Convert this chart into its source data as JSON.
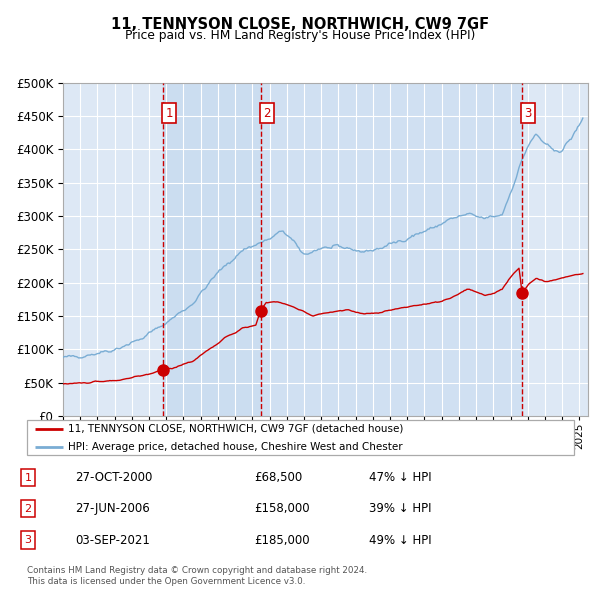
{
  "title_line1": "11, TENNYSON CLOSE, NORTHWICH, CW9 7GF",
  "title_line2": "Price paid vs. HM Land Registry's House Price Index (HPI)",
  "background_color": "#ffffff",
  "plot_bg_color": "#dde8f5",
  "hpi_color": "#7aadd4",
  "price_color": "#cc0000",
  "transactions": [
    {
      "label": 1,
      "date_num": 2000.83,
      "price": 68500,
      "text": "27-OCT-2000",
      "price_str": "£68,500",
      "pct": "47% ↓ HPI"
    },
    {
      "label": 2,
      "date_num": 2006.49,
      "price": 158000,
      "text": "27-JUN-2006",
      "price_str": "£158,000",
      "pct": "39% ↓ HPI"
    },
    {
      "label": 3,
      "date_num": 2021.67,
      "price": 185000,
      "text": "03-SEP-2021",
      "price_str": "£185,000",
      "pct": "49% ↓ HPI"
    }
  ],
  "ylim": [
    0,
    500000
  ],
  "yticks": [
    0,
    50000,
    100000,
    150000,
    200000,
    250000,
    300000,
    350000,
    400000,
    450000,
    500000
  ],
  "xlim_start": 1995.0,
  "xlim_end": 2025.5,
  "xticks": [
    1995,
    1996,
    1997,
    1998,
    1999,
    2000,
    2001,
    2002,
    2003,
    2004,
    2005,
    2006,
    2007,
    2008,
    2009,
    2010,
    2011,
    2012,
    2013,
    2014,
    2015,
    2016,
    2017,
    2018,
    2019,
    2020,
    2021,
    2022,
    2023,
    2024,
    2025
  ],
  "legend_label_price": "11, TENNYSON CLOSE, NORTHWICH, CW9 7GF (detached house)",
  "legend_label_hpi": "HPI: Average price, detached house, Cheshire West and Chester",
  "footer_line1": "Contains HM Land Registry data © Crown copyright and database right 2024.",
  "footer_line2": "This data is licensed under the Open Government Licence v3.0.",
  "hpi_anchors_t": [
    1995.0,
    1996.5,
    1998.0,
    1999.5,
    2001.0,
    2002.5,
    2004.0,
    2005.5,
    2007.0,
    2007.8,
    2009.0,
    2010.0,
    2011.5,
    2012.5,
    2013.5,
    2014.5,
    2015.5,
    2016.5,
    2017.5,
    2018.5,
    2019.5,
    2020.5,
    2021.0,
    2021.5,
    2022.0,
    2022.5,
    2023.0,
    2023.5,
    2024.0,
    2024.5,
    2025.2
  ],
  "hpi_anchors_v": [
    87000,
    92000,
    100000,
    115000,
    140000,
    168000,
    215000,
    250000,
    265000,
    278000,
    242000,
    252000,
    252000,
    246000,
    252000,
    262000,
    272000,
    282000,
    295000,
    302000,
    296000,
    302000,
    335000,
    372000,
    405000,
    422000,
    408000,
    396000,
    400000,
    415000,
    445000
  ],
  "price_anchors_t": [
    1995.0,
    1996.5,
    1998.0,
    1999.0,
    2000.0,
    2000.83,
    2001.5,
    2002.5,
    2003.5,
    2004.5,
    2005.5,
    2006.2,
    2006.49,
    2006.8,
    2007.5,
    2008.5,
    2009.5,
    2010.5,
    2011.5,
    2012.5,
    2013.5,
    2014.5,
    2015.5,
    2016.5,
    2017.5,
    2018.0,
    2018.5,
    2019.0,
    2019.5,
    2020.0,
    2020.5,
    2021.0,
    2021.5,
    2021.67,
    2022.1,
    2022.5,
    2023.0,
    2023.5,
    2024.0,
    2024.5,
    2025.2
  ],
  "price_anchors_v": [
    48000,
    50000,
    53000,
    57000,
    63000,
    68500,
    73000,
    82000,
    100000,
    118000,
    132000,
    136000,
    158000,
    170000,
    172000,
    162000,
    150000,
    156000,
    159000,
    153000,
    156000,
    161000,
    166000,
    169000,
    176000,
    183000,
    190000,
    186000,
    181000,
    184000,
    189000,
    208000,
    222000,
    185000,
    198000,
    207000,
    201000,
    204000,
    207000,
    210000,
    214000
  ]
}
